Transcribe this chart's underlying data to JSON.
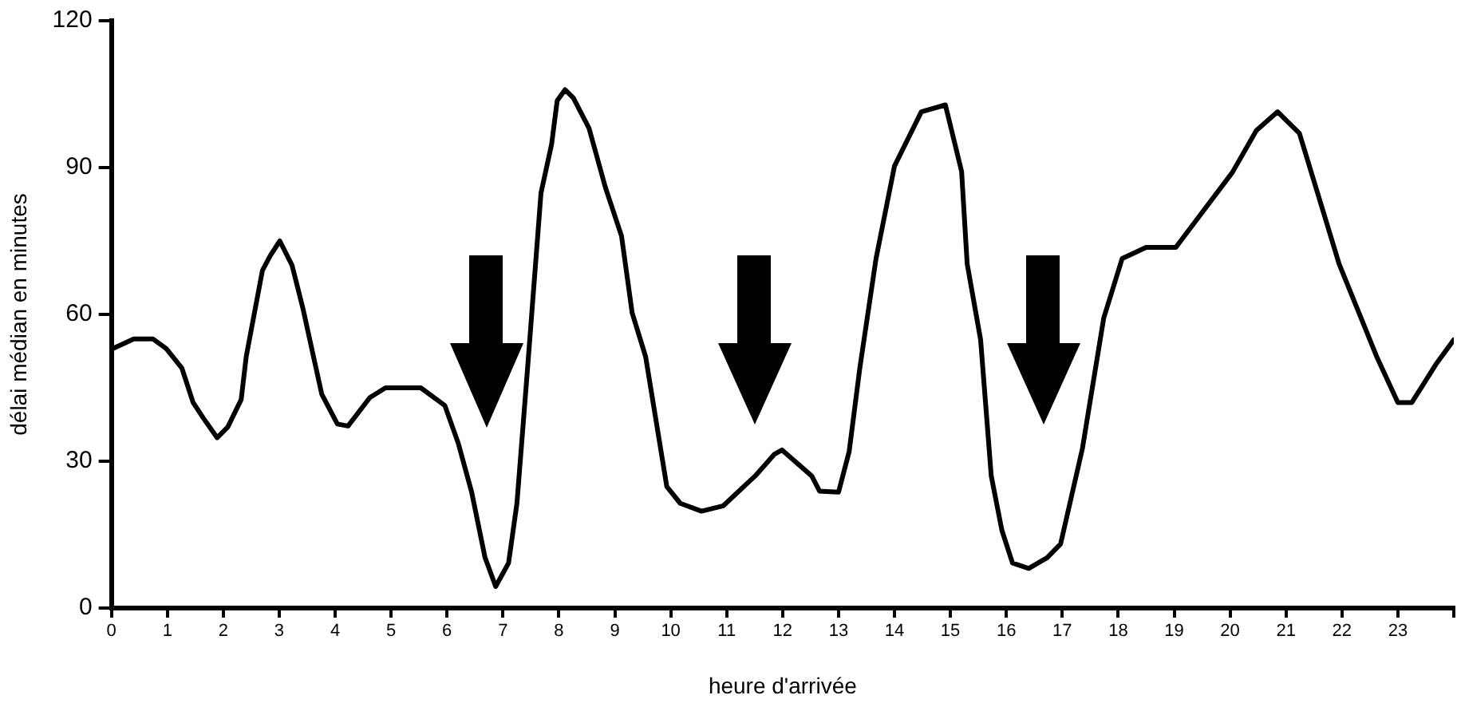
{
  "chart_data": {
    "type": "line",
    "xlabel": "heure d'arrivée",
    "ylabel": "délai médian en minutes",
    "xlim": [
      0,
      24
    ],
    "xticks": [
      0,
      1,
      2,
      3,
      4,
      5,
      6,
      7,
      8,
      9,
      10,
      11,
      12,
      13,
      14,
      15,
      16,
      17,
      18,
      19,
      20,
      21,
      22,
      23,
      {
        "value": 24,
        "label": null
      }
    ],
    "ylim": [
      0,
      120
    ],
    "yticks": [
      0,
      30,
      60,
      90,
      120
    ],
    "grid": false,
    "legend": false,
    "marker": "none",
    "line_style": "solid",
    "series": [
      {
        "color": "#000000",
        "x": [
          0.02,
          0.4,
          0.74,
          0.98,
          1.26,
          1.46,
          1.65,
          1.89,
          2.08,
          2.32,
          2.41,
          2.7,
          2.84,
          3.01,
          3.23,
          3.42,
          3.76,
          4.04,
          4.23,
          4.62,
          4.9,
          5.53,
          5.96,
          6.2,
          6.44,
          6.68,
          6.87,
          7.1,
          7.25,
          7.44,
          7.68,
          7.87,
          7.97,
          8.11,
          8.26,
          8.54,
          8.83,
          9.12,
          9.31,
          9.55,
          9.93,
          10.17,
          10.55,
          10.94,
          11.51,
          11.85,
          11.99,
          12.52,
          12.66,
          13.0,
          13.19,
          13.38,
          13.67,
          14.0,
          14.48,
          14.91,
          15.2,
          15.3,
          15.54,
          15.73,
          15.92,
          16.11,
          16.4,
          16.73,
          16.97,
          17.36,
          17.74,
          18.07,
          18.5,
          19.03,
          20.04,
          20.47,
          20.85,
          21.24,
          21.95,
          22.62,
          23.0,
          23.25,
          23.68,
          24.0
        ],
        "values": [
          53,
          55,
          55,
          53,
          49,
          42,
          38.7,
          34.8,
          37,
          42.6,
          51.4,
          69,
          72,
          75,
          70,
          61.4,
          43.7,
          37.6,
          37.2,
          43,
          45,
          45,
          41.4,
          33.7,
          23.7,
          10.3,
          4.4,
          9.2,
          21.4,
          49,
          84.8,
          94.8,
          103.7,
          105.9,
          104.2,
          98,
          86,
          76,
          60.3,
          51.4,
          24.8,
          21.4,
          19.8,
          20.9,
          27,
          31.4,
          32.3,
          27,
          23.9,
          23.7,
          32,
          49,
          71.4,
          90.3,
          101.4,
          102.8,
          89.2,
          70.3,
          54.8,
          27,
          15.9,
          9.2,
          8.1,
          10.3,
          13.1,
          32.6,
          59.2,
          71.4,
          73.7,
          73.7,
          89,
          97.6,
          101.4,
          97,
          70.3,
          51.4,
          42,
          42,
          49.8,
          54.8
        ]
      }
    ]
  }
}
